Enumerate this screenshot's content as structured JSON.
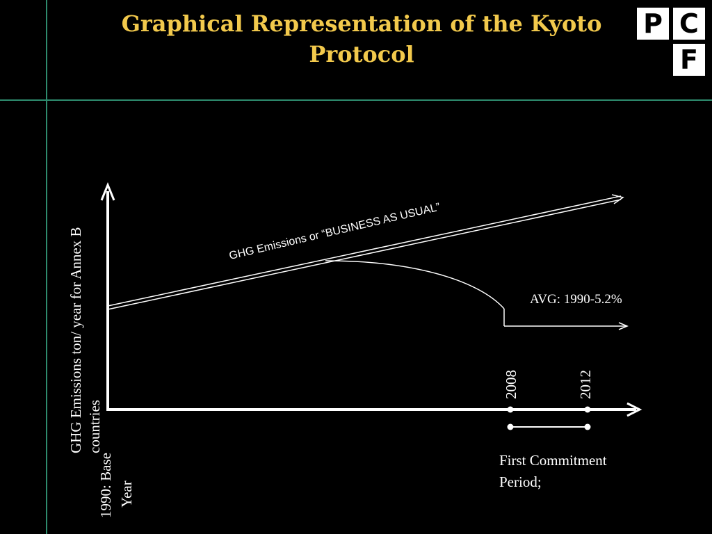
{
  "title": "Graphical Representation of the Kyoto Protocol",
  "logo": {
    "letters": [
      "P",
      "C",
      "F"
    ]
  },
  "diagram": {
    "y_axis_label_line1": "GHG Emissions ton/ year for Annex B",
    "y_axis_label_line2": "countries",
    "bau_label": "GHG Emissions or “BUSINESS AS USUAL”",
    "target_label": "AVG: 1990-5.2%",
    "year_start": "2008",
    "year_end": "2012",
    "base_label_line1": "1990:  Base",
    "base_label_line2": "Year",
    "period_label_line1": "First Commitment",
    "period_label_line2": "Period;"
  },
  "colors": {
    "title": "#f2c94c",
    "frame": "#2e8b6e",
    "lines": "#ffffff",
    "background": "#000000"
  }
}
